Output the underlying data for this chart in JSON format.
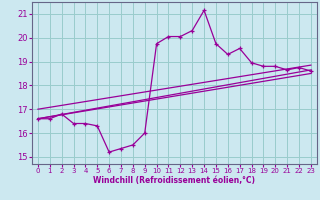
{
  "xlabel": "Windchill (Refroidissement éolien,°C)",
  "bg_color": "#cce8f0",
  "line_color": "#990099",
  "grid_color": "#99cccc",
  "xlim": [
    -0.5,
    23.5
  ],
  "ylim": [
    14.7,
    21.5
  ],
  "yticks": [
    15,
    16,
    17,
    18,
    19,
    20,
    21
  ],
  "xticks": [
    0,
    1,
    2,
    3,
    4,
    5,
    6,
    7,
    8,
    9,
    10,
    11,
    12,
    13,
    14,
    15,
    16,
    17,
    18,
    19,
    20,
    21,
    22,
    23
  ],
  "curve1_x": [
    0,
    1,
    2,
    3,
    4,
    5,
    6,
    7,
    8,
    9,
    10,
    11,
    12,
    13,
    14,
    15,
    16,
    17,
    18,
    19,
    20,
    21,
    22,
    23
  ],
  "curve1_y": [
    16.6,
    16.6,
    16.8,
    16.4,
    16.4,
    16.3,
    15.2,
    15.35,
    15.5,
    16.0,
    19.75,
    20.05,
    20.05,
    20.3,
    21.15,
    19.75,
    19.3,
    19.55,
    18.95,
    18.8,
    18.8,
    18.65,
    18.75,
    18.6
  ],
  "line1_x": [
    0,
    23
  ],
  "line1_y": [
    16.6,
    18.65
  ],
  "line2_x": [
    0,
    23
  ],
  "line2_y": [
    16.6,
    18.5
  ],
  "line3_x": [
    0,
    23
  ],
  "line3_y": [
    17.0,
    18.85
  ]
}
